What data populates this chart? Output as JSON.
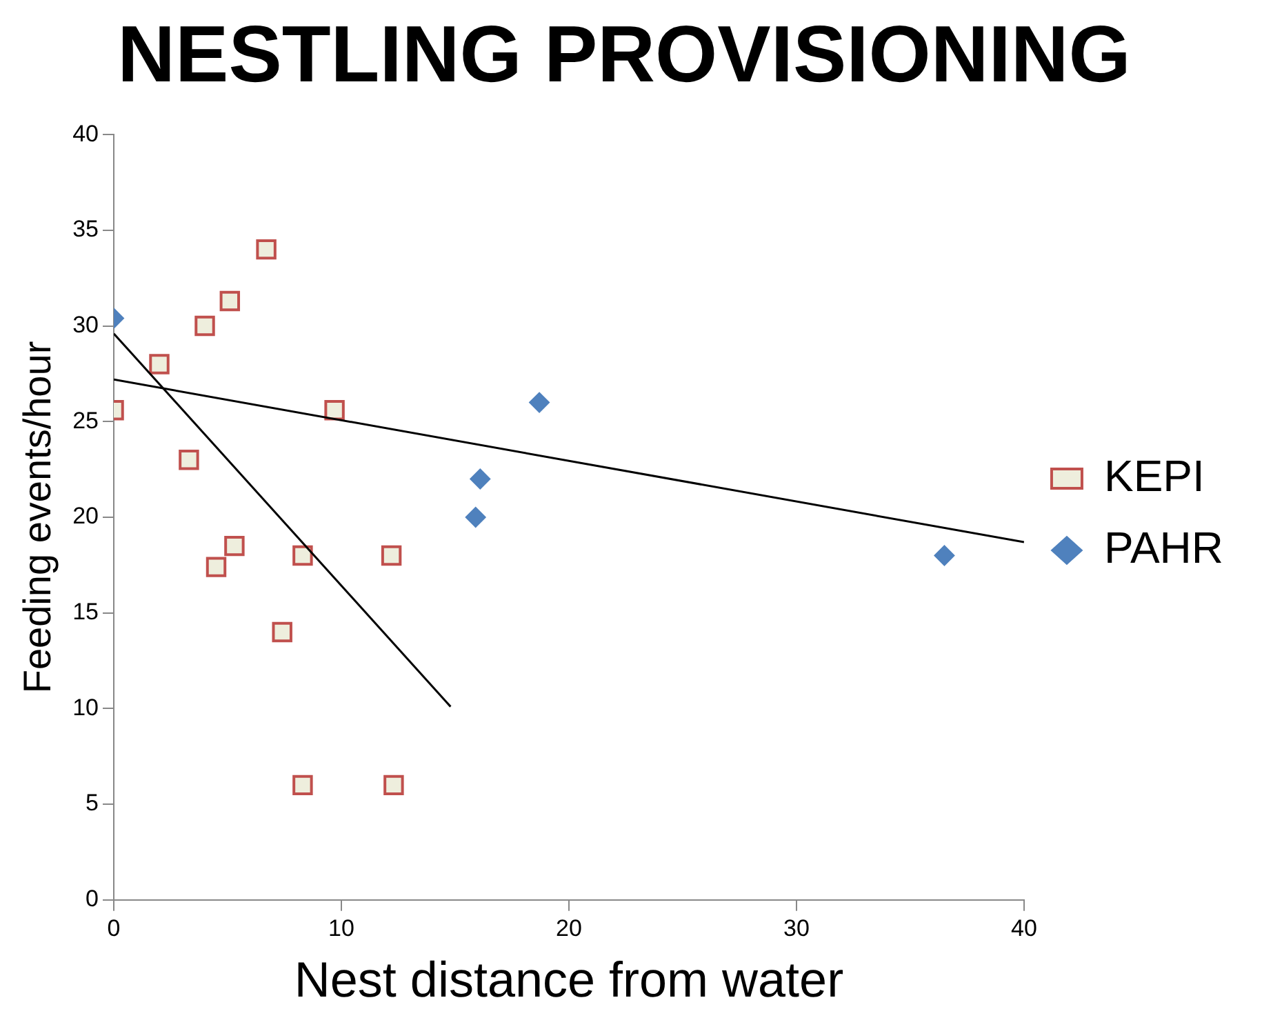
{
  "chart_data": {
    "type": "scatter",
    "title": "NESTLING PROVISIONING",
    "xlabel": "Nest distance from water",
    "ylabel": "Feeding events/hour",
    "xlim": [
      0,
      40
    ],
    "xticks": [
      0,
      10,
      20,
      30,
      40
    ],
    "ylim": [
      0,
      40
    ],
    "yticks": [
      0,
      5,
      10,
      15,
      20,
      25,
      30,
      35,
      40
    ],
    "grid": false,
    "legend": "right",
    "series": [
      {
        "name": "KEPI",
        "type": "scatter",
        "marker": "square",
        "color": "#c0504d",
        "x": [
          0,
          2,
          3.3,
          4,
          5.1,
          6.7,
          4.5,
          5.3,
          7.4,
          8.3,
          9.7,
          12.2,
          8.3,
          12.3
        ],
        "values": [
          25.6,
          28,
          23,
          30,
          31.3,
          34,
          17.4,
          18.5,
          14,
          18,
          25.6,
          18,
          6,
          6
        ]
      },
      {
        "name": "PAHR",
        "type": "scatter",
        "marker": "diamond",
        "color": "#4f81bd",
        "x": [
          0,
          15.9,
          16.1,
          18.7,
          36.5
        ],
        "values": [
          30.4,
          20,
          22,
          26,
          18
        ]
      },
      {
        "type": "line",
        "marker": "none",
        "color": "#000000",
        "x": [
          0,
          14.8
        ],
        "values": [
          29.6,
          10.1
        ]
      },
      {
        "type": "line",
        "marker": "none",
        "color": "#000000",
        "x": [
          0,
          40
        ],
        "values": [
          27.2,
          18.7
        ]
      }
    ]
  }
}
